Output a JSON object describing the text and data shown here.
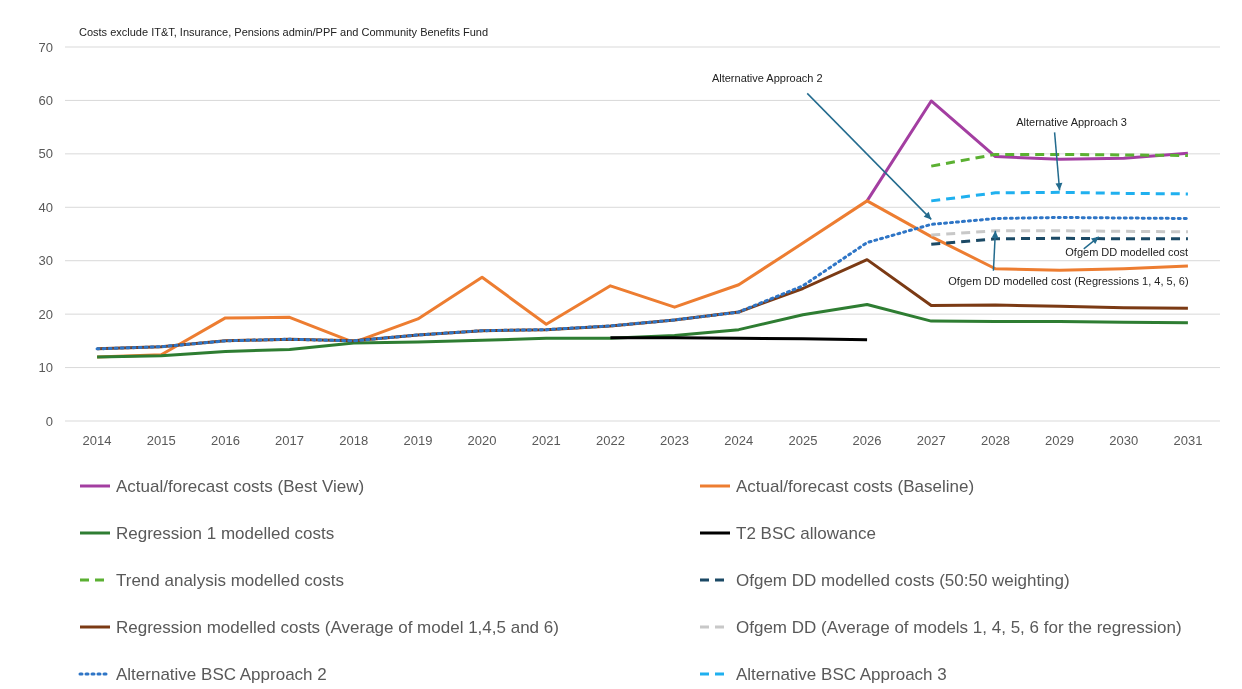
{
  "chart_data": {
    "type": "line",
    "title": "Costs exclude IT&T, Insurance, Pensions admin/PPF and Community Benefits Fund",
    "categories": [
      "2014",
      "2015",
      "2016",
      "2017",
      "2018",
      "2019",
      "2020",
      "2021",
      "2022",
      "2023",
      "2024",
      "2025",
      "2026",
      "2027",
      "2028",
      "2029",
      "2030",
      "2031"
    ],
    "ylim": [
      0,
      70
    ],
    "yticks": [
      0,
      10,
      20,
      30,
      40,
      50,
      60,
      70
    ],
    "grid": "y",
    "legend": "bottom",
    "marker": "none",
    "series": [
      {
        "name": "Actual/forecast costs (Best View)",
        "color": "#a33ea1",
        "line_style": "solid",
        "values": [
          null,
          null,
          null,
          null,
          null,
          null,
          null,
          null,
          null,
          null,
          null,
          null,
          41.2,
          59.9,
          49.5,
          49.0,
          49.2,
          50.1
        ]
      },
      {
        "name": "Actual/forecast costs (Baseline)",
        "color": "#ed7d31",
        "line_style": "solid",
        "values": [
          12.0,
          12.4,
          19.3,
          19.4,
          14.7,
          19.1,
          26.9,
          18.1,
          25.3,
          21.3,
          25.5,
          33.3,
          41.2,
          34.5,
          28.5,
          28.2,
          28.5,
          29.0
        ]
      },
      {
        "name": "Regression 1 modelled costs",
        "color": "#2e7d32",
        "line_style": "solid",
        "values": [
          12.0,
          12.2,
          13.0,
          13.4,
          14.6,
          14.8,
          15.1,
          15.5,
          15.5,
          16.0,
          17.1,
          19.9,
          21.8,
          18.7,
          18.6,
          18.6,
          18.5,
          18.4
        ]
      },
      {
        "name": "T2 BSC allowance",
        "color": "#000000",
        "line_style": "solid",
        "values": [
          null,
          null,
          null,
          null,
          null,
          null,
          null,
          null,
          15.6,
          15.6,
          15.5,
          15.4,
          15.2,
          null,
          null,
          null,
          null,
          null
        ]
      },
      {
        "name": "Trend analysis modelled costs",
        "color": "#5bb032",
        "line_style": "dashed",
        "values": [
          null,
          null,
          null,
          null,
          null,
          null,
          null,
          null,
          null,
          null,
          null,
          null,
          null,
          47.7,
          49.9,
          49.9,
          49.8,
          49.7
        ]
      },
      {
        "name": "Ofgem DD modelled costs (50:50 weighting)",
        "color": "#1b4965",
        "line_style": "dashed",
        "values": [
          null,
          null,
          null,
          null,
          null,
          null,
          null,
          null,
          null,
          null,
          null,
          null,
          null,
          33.1,
          34.1,
          34.2,
          34.1,
          34.1
        ]
      },
      {
        "name": "Regression modelled costs (Average of model 1,4,5 and 6)",
        "color": "#7b3a14",
        "line_style": "solid",
        "values": [
          13.5,
          13.9,
          15.0,
          15.3,
          15.0,
          16.1,
          16.9,
          17.1,
          17.8,
          18.9,
          20.4,
          24.8,
          30.2,
          21.6,
          21.7,
          21.5,
          21.2,
          21.1
        ]
      },
      {
        "name": "Ofgem DD (Average of models 1, 4, 5, 6 for the regression)",
        "color": "#c8c8c8",
        "line_style": "dashed",
        "values": [
          null,
          null,
          null,
          null,
          null,
          null,
          null,
          null,
          null,
          null,
          null,
          null,
          null,
          34.8,
          35.6,
          35.6,
          35.5,
          35.4
        ]
      },
      {
        "name": "Alternative BSC Approach 2",
        "color": "#2e75c6",
        "line_style": "dotted",
        "values": [
          13.5,
          13.9,
          15.0,
          15.3,
          15.0,
          16.1,
          16.9,
          17.1,
          17.8,
          18.9,
          20.4,
          25.3,
          33.4,
          36.8,
          37.9,
          38.1,
          38.0,
          37.9
        ]
      },
      {
        "name": "Alternative BSC Approach 3",
        "color": "#1fb0ef",
        "line_style": "dashed",
        "values": [
          null,
          null,
          null,
          null,
          null,
          null,
          null,
          null,
          null,
          null,
          null,
          null,
          null,
          41.2,
          42.7,
          42.8,
          42.6,
          42.5
        ]
      }
    ],
    "annotations": [
      {
        "text": "Alternative Approach 2",
        "x": "2027",
        "y": 36.8
      },
      {
        "text": "Alternative Approach 3",
        "x": "2029",
        "y": 42.8
      },
      {
        "text": "Ofgem DD modelled cost",
        "x": "2030",
        "y": 34.1
      },
      {
        "text": "Ofgem DD modelled cost (Regressions 1, 4, 5, 6)",
        "x": "2028",
        "y": 35.6
      }
    ]
  }
}
